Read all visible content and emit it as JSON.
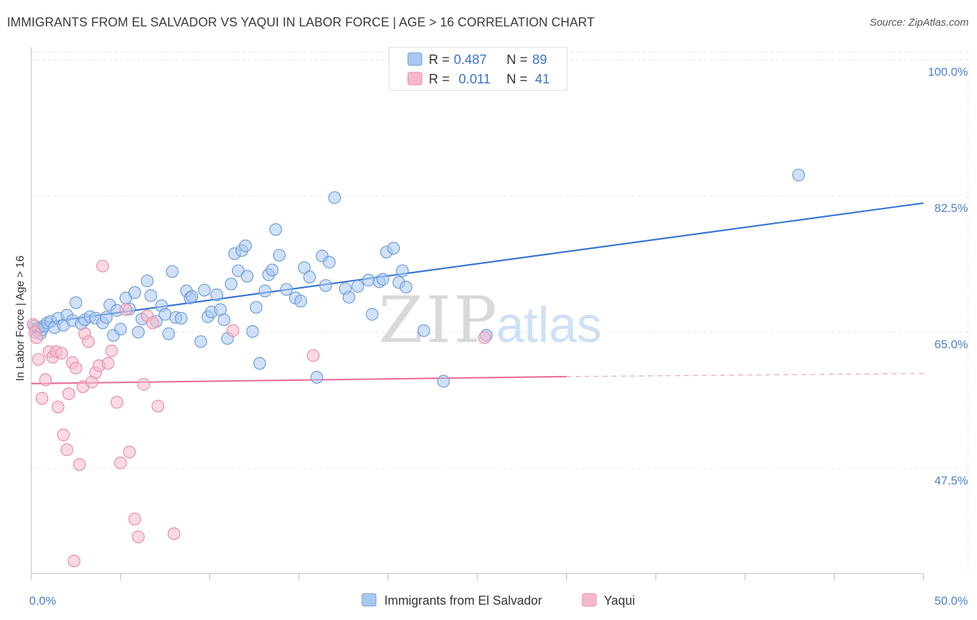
{
  "title": "IMMIGRANTS FROM EL SALVADOR VS YAQUI IN LABOR FORCE | AGE > 16 CORRELATION CHART",
  "source": "Source: ZipAtlas.com",
  "watermark": {
    "zip": "ZIP",
    "atlas": "atlas"
  },
  "legend_top": {
    "rows": [
      {
        "r_label": "R =",
        "r_value": "0.487",
        "n_label": "N =",
        "n_value": "89",
        "color": "#a9c8f0"
      },
      {
        "r_label": "R =",
        "r_value": "0.011",
        "n_label": "N =",
        "n_value": "41",
        "color": "#f6b9cc"
      }
    ]
  },
  "chart_data": {
    "type": "scatter",
    "title": "IMMIGRANTS FROM EL SALVADOR VS YAQUI IN LABOR FORCE | AGE > 16 CORRELATION CHART",
    "xlabel": "",
    "ylabel": "In Labor Force | Age > 16",
    "xlim": [
      0,
      50
    ],
    "ylim": [
      34,
      101
    ],
    "x_tick_labels": [
      "0.0%",
      "50.0%"
    ],
    "y_ticks": [
      47.5,
      65.0,
      82.5,
      100.0
    ],
    "y_tick_labels": [
      "47.5%",
      "65.0%",
      "82.5%",
      "100.0%"
    ],
    "grid": true,
    "legend_position": "top-center",
    "series": [
      {
        "name": "Immigrants from El Salvador",
        "color": "#a9c8f0",
        "stroke": "#6b9bd8",
        "trend": {
          "x": [
            0,
            50
          ],
          "y": [
            66.0,
            81.6
          ],
          "color": "#3574d4"
        },
        "points": [
          [
            0.2,
            65.8
          ],
          [
            0.3,
            65.2
          ],
          [
            0.4,
            65.5
          ],
          [
            0.5,
            64.8
          ],
          [
            0.6,
            65.3
          ],
          [
            0.7,
            65.8
          ],
          [
            0.9,
            66.2
          ],
          [
            1.1,
            66.4
          ],
          [
            1.3,
            65.6
          ],
          [
            1.5,
            66.8
          ],
          [
            1.8,
            65.9
          ],
          [
            2.0,
            67.2
          ],
          [
            2.3,
            66.5
          ],
          [
            2.5,
            68.8
          ],
          [
            2.8,
            66.1
          ],
          [
            3.0,
            66.6
          ],
          [
            3.3,
            67.0
          ],
          [
            3.6,
            66.8
          ],
          [
            4.0,
            66.2
          ],
          [
            4.2,
            66.9
          ],
          [
            4.4,
            68.5
          ],
          [
            4.6,
            64.6
          ],
          [
            4.8,
            67.8
          ],
          [
            5.0,
            65.4
          ],
          [
            5.3,
            69.4
          ],
          [
            5.5,
            68.0
          ],
          [
            5.8,
            70.1
          ],
          [
            6.0,
            65.0
          ],
          [
            6.2,
            66.7
          ],
          [
            6.5,
            71.6
          ],
          [
            6.7,
            69.7
          ],
          [
            7.0,
            66.4
          ],
          [
            7.3,
            68.4
          ],
          [
            7.5,
            67.3
          ],
          [
            7.7,
            64.8
          ],
          [
            7.9,
            72.8
          ],
          [
            8.1,
            66.9
          ],
          [
            8.4,
            66.8
          ],
          [
            8.7,
            70.3
          ],
          [
            8.9,
            69.4
          ],
          [
            9.0,
            69.6
          ],
          [
            9.5,
            63.8
          ],
          [
            9.7,
            70.4
          ],
          [
            9.9,
            67.0
          ],
          [
            10.1,
            67.6
          ],
          [
            10.4,
            69.8
          ],
          [
            10.6,
            67.9
          ],
          [
            10.8,
            66.6
          ],
          [
            11.0,
            64.2
          ],
          [
            11.2,
            71.2
          ],
          [
            11.4,
            75.1
          ],
          [
            11.6,
            72.9
          ],
          [
            11.8,
            75.5
          ],
          [
            12.0,
            76.1
          ],
          [
            12.1,
            72.2
          ],
          [
            12.4,
            65.1
          ],
          [
            12.6,
            68.2
          ],
          [
            12.8,
            61.0
          ],
          [
            13.1,
            70.3
          ],
          [
            13.3,
            72.4
          ],
          [
            13.5,
            73.0
          ],
          [
            13.7,
            78.2
          ],
          [
            13.9,
            74.9
          ],
          [
            14.3,
            70.5
          ],
          [
            14.8,
            69.4
          ],
          [
            15.1,
            69.0
          ],
          [
            15.3,
            73.3
          ],
          [
            15.6,
            72.1
          ],
          [
            16.0,
            59.2
          ],
          [
            16.3,
            74.8
          ],
          [
            16.5,
            71.0
          ],
          [
            16.7,
            74.0
          ],
          [
            17.0,
            82.3
          ],
          [
            17.6,
            70.6
          ],
          [
            17.8,
            69.5
          ],
          [
            18.3,
            70.9
          ],
          [
            18.9,
            71.7
          ],
          [
            19.1,
            67.3
          ],
          [
            19.5,
            71.5
          ],
          [
            19.7,
            71.8
          ],
          [
            19.9,
            75.3
          ],
          [
            20.6,
            71.4
          ],
          [
            20.8,
            72.9
          ],
          [
            21.0,
            70.8
          ],
          [
            22.0,
            65.2
          ],
          [
            23.1,
            58.7
          ],
          [
            25.5,
            64.6
          ],
          [
            43.0,
            85.2
          ],
          [
            20.3,
            75.8
          ]
        ]
      },
      {
        "name": "Yaqui",
        "color": "#f6b9cc",
        "stroke": "#e88ba8",
        "trend": {
          "x": [
            0,
            30
          ],
          "y": [
            58.4,
            59.3
          ],
          "dash_to": 50,
          "dash_y": 59.7,
          "color": "#e8709a"
        },
        "points": [
          [
            0.1,
            66.0
          ],
          [
            0.2,
            65.0
          ],
          [
            0.3,
            64.3
          ],
          [
            0.4,
            61.5
          ],
          [
            0.6,
            56.5
          ],
          [
            0.8,
            58.9
          ],
          [
            1.0,
            62.5
          ],
          [
            1.2,
            61.8
          ],
          [
            1.4,
            62.5
          ],
          [
            1.5,
            55.4
          ],
          [
            1.7,
            62.3
          ],
          [
            1.8,
            51.8
          ],
          [
            2.0,
            49.9
          ],
          [
            2.1,
            57.1
          ],
          [
            2.3,
            61.1
          ],
          [
            2.5,
            60.4
          ],
          [
            2.7,
            48.0
          ],
          [
            2.9,
            58.0
          ],
          [
            3.0,
            64.8
          ],
          [
            3.2,
            63.8
          ],
          [
            3.4,
            58.6
          ],
          [
            3.6,
            59.8
          ],
          [
            3.8,
            60.7
          ],
          [
            4.0,
            73.5
          ],
          [
            4.3,
            61.0
          ],
          [
            4.5,
            62.6
          ],
          [
            4.8,
            56.0
          ],
          [
            5.0,
            48.2
          ],
          [
            5.3,
            67.9
          ],
          [
            5.5,
            49.6
          ],
          [
            5.8,
            41.0
          ],
          [
            6.0,
            38.7
          ],
          [
            6.3,
            58.3
          ],
          [
            6.5,
            67.1
          ],
          [
            6.8,
            66.2
          ],
          [
            7.1,
            55.5
          ],
          [
            8.0,
            39.1
          ],
          [
            11.3,
            65.2
          ],
          [
            15.8,
            62.0
          ],
          [
            25.4,
            64.3
          ],
          [
            2.4,
            35.6
          ]
        ]
      }
    ]
  },
  "bottom_legend": {
    "items": [
      {
        "label": "Immigrants from El Salvador",
        "color": "#a9c8f0"
      },
      {
        "label": "Yaqui",
        "color": "#f6b9cc"
      }
    ]
  }
}
